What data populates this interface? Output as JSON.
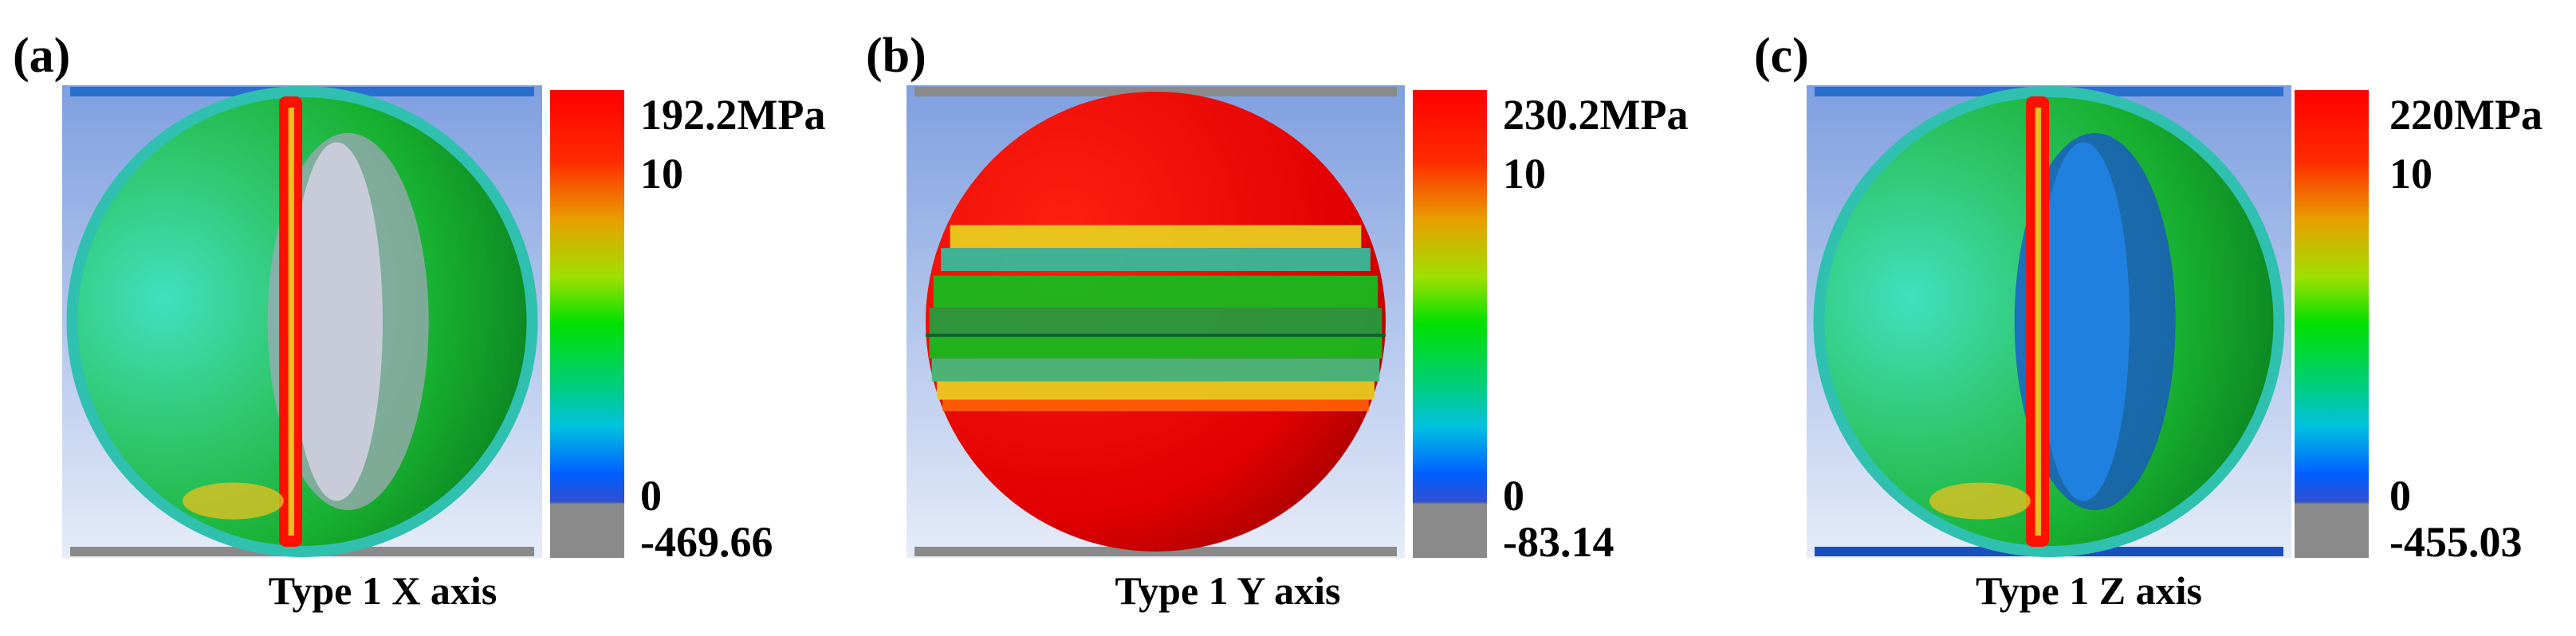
{
  "panels": [
    {
      "label": "(a)",
      "caption": "Type 1 X axis",
      "legend": {
        "max": "192.2MPa",
        "mid": "10",
        "zero": "0",
        "min": "-469.66"
      }
    },
    {
      "label": "(b)",
      "caption": "Type 1 Y axis",
      "legend": {
        "max": "230.2MPa",
        "mid": "10",
        "zero": "0",
        "min": "-83.14"
      }
    },
    {
      "label": "(c)",
      "caption": "Type 1 Z axis",
      "legend": {
        "max": "220MPa",
        "mid": "10",
        "zero": "0",
        "min": "-455.03"
      }
    }
  ]
}
